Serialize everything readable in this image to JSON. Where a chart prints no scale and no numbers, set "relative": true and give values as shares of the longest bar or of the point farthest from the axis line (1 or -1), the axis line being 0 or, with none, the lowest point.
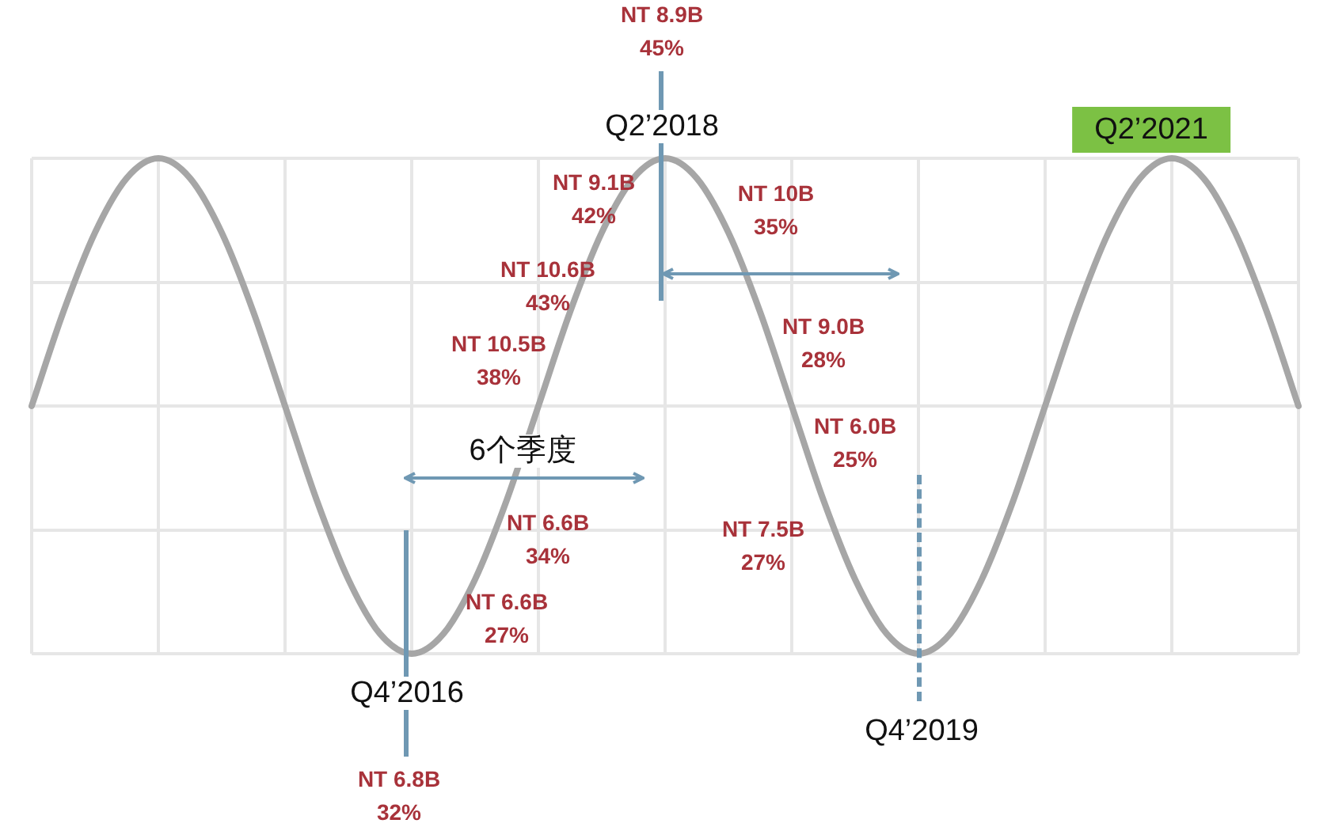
{
  "chart_data": {
    "type": "line",
    "relative": true,
    "grid": true,
    "line_style": "solid",
    "marker": "none",
    "color": "#a6a6a6",
    "categories": [
      null,
      null,
      null,
      null,
      null,
      null,
      null,
      null,
      null,
      null,
      null,
      null,
      null,
      null,
      null,
      null,
      null,
      null,
      null,
      null,
      null,
      null,
      null,
      null,
      null,
      null,
      null,
      null,
      null,
      null,
      null,
      null,
      null,
      null,
      null,
      null,
      null,
      null,
      null,
      null,
      null
    ],
    "values": [
      0.5,
      0.69,
      0.85,
      0.96,
      1,
      0.96,
      0.85,
      0.69,
      0.5,
      0.31,
      0.15,
      0.04,
      0,
      0.04,
      0.15,
      0.31,
      0.5,
      0.69,
      0.85,
      0.96,
      1,
      0.96,
      0.85,
      0.69,
      0.5,
      0.31,
      0.15,
      0.04,
      0,
      0.04,
      0.15,
      0.31,
      0.5,
      0.69,
      0.85,
      0.96,
      1,
      0.96,
      0.85,
      0.69,
      0.5
    ],
    "annotations": [
      "NT 8.9B\n45%",
      "Q2’2018",
      "Q2’2021",
      "NT 9.1B\n42%",
      "NT 10B\n35%",
      "NT 10.6B\n43%",
      "NT 10.5B\n38%",
      "NT 9.0B\n28%",
      "6个季度",
      "NT 6.0B\n25%",
      "NT 6.6B\n34%",
      "NT 7.5B\n27%",
      "NT 6.6B\n27%",
      "Q4’2016",
      "Q4’2019",
      "NT 6.8B\n32%"
    ]
  }
}
